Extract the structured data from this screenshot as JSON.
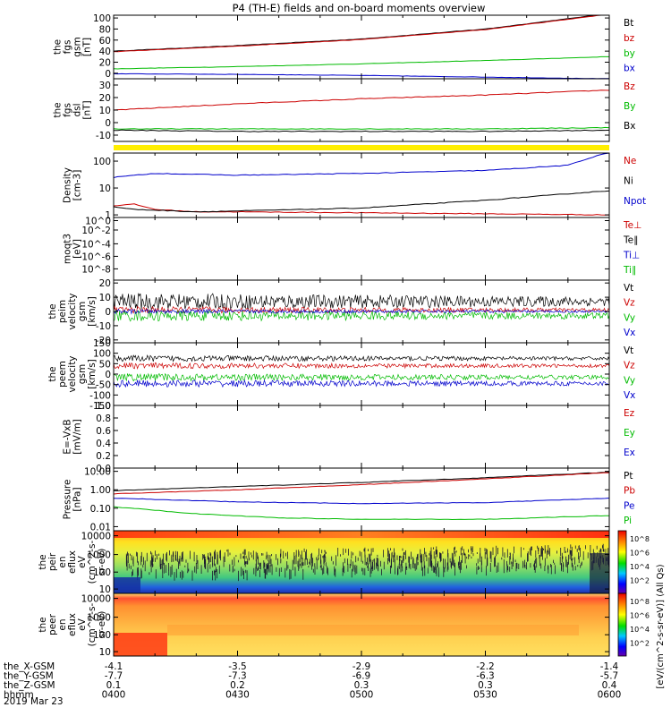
{
  "title": "P4 (TH-E) fields and on-board moments overview",
  "date": "2019 Mar 23",
  "colorbar_unit": "[eV/(cm^2-s-sr-eV)] (All Qs)",
  "ephemeris": {
    "labels": [
      "the_X-GSM",
      "the_Y-GSM",
      "the_Z-GSM",
      "hhmm"
    ],
    "columns": [
      [
        "-4.1",
        "-7.7",
        "0.1",
        "0400"
      ],
      [
        "-3.5",
        "-7.3",
        "0.2",
        "0430"
      ],
      [
        "-2.9",
        "-6.9",
        "0.3",
        "0500"
      ],
      [
        "-2.2",
        "-6.3",
        "0.3",
        "0530"
      ],
      [
        "-1.4",
        "-5.7",
        "0.4",
        "0600"
      ]
    ]
  },
  "chart_data": [
    {
      "type": "line",
      "id": "fgs_gsm",
      "ylabel": [
        "the",
        "fgs",
        "gsm",
        "[nT]"
      ],
      "yticks": [
        "100",
        "80",
        "60",
        "40",
        "20",
        "0"
      ],
      "ylim": [
        -10,
        105
      ],
      "series": [
        {
          "name": "Bt",
          "color": "#000000",
          "x": [
            0,
            30,
            60,
            90,
            120
          ],
          "values": [
            40,
            50,
            62,
            80,
            108
          ]
        },
        {
          "name": "bz",
          "color": "#cc0000",
          "x": [
            0,
            30,
            60,
            90,
            120
          ],
          "values": [
            39,
            49,
            61,
            79,
            107
          ]
        },
        {
          "name": "by",
          "color": "#00bb00",
          "x": [
            0,
            30,
            60,
            90,
            120
          ],
          "values": [
            8,
            12,
            17,
            23,
            30
          ]
        },
        {
          "name": "bx",
          "color": "#0000cc",
          "x": [
            0,
            30,
            60,
            90,
            120
          ],
          "values": [
            -1,
            -2,
            -4,
            -7,
            -10
          ]
        }
      ]
    },
    {
      "type": "line",
      "id": "fgs_dsl",
      "ylabel": [
        "the",
        "fgs",
        "dsl",
        "[nT]"
      ],
      "yticks": [
        "30",
        "20",
        "10",
        "0",
        "-10"
      ],
      "ylim": [
        -15,
        35
      ],
      "series": [
        {
          "name": "Bz",
          "color": "#cc0000",
          "x": [
            0,
            30,
            60,
            90,
            120
          ],
          "values": [
            10,
            15,
            19,
            22,
            26
          ]
        },
        {
          "name": "By",
          "color": "#00bb00",
          "x": [
            0,
            30,
            60,
            90,
            120
          ],
          "values": [
            -5,
            -5,
            -5,
            -5,
            -4
          ]
        },
        {
          "name": "Bx",
          "color": "#000000",
          "x": [
            0,
            30,
            60,
            90,
            120
          ],
          "values": [
            -6,
            -7,
            -7,
            -7,
            -6
          ]
        }
      ]
    },
    {
      "type": "line",
      "id": "density",
      "ylabel": [
        "Density",
        "[cm-3]"
      ],
      "yticks": [
        "100",
        "10",
        "1"
      ],
      "scale": "log",
      "ylim": [
        0.8,
        200
      ],
      "series": [
        {
          "name": "Ne",
          "color": "#cc0000",
          "x": [
            0,
            5,
            10,
            20,
            30,
            60,
            90,
            120
          ],
          "values": [
            2.2,
            2.5,
            1.6,
            1.3,
            1.3,
            1.2,
            1.1,
            1.0
          ]
        },
        {
          "name": "Ni",
          "color": "#000000",
          "x": [
            0,
            5,
            10,
            20,
            30,
            60,
            90,
            120
          ],
          "values": [
            2.0,
            1.6,
            1.5,
            1.3,
            1.4,
            1.8,
            3.5,
            8
          ]
        },
        {
          "name": "Npot",
          "color": "#0000cc",
          "x": [
            0,
            10,
            30,
            60,
            90,
            110,
            118,
            120
          ],
          "values": [
            25,
            35,
            30,
            35,
            45,
            70,
            180,
            200
          ]
        }
      ]
    },
    {
      "type": "line",
      "id": "temperature",
      "ylabel": [
        "moqt3",
        "[eV]"
      ],
      "yticks": [
        "10^0",
        "10^-2",
        "10^-4",
        "10^-6",
        "10^-8"
      ],
      "series": [
        {
          "name": "Te⊥",
          "color": "#cc0000"
        },
        {
          "name": "Te∥",
          "color": "#000000"
        },
        {
          "name": "Ti⊥",
          "color": "#0000cc"
        },
        {
          "name": "Ti∥",
          "color": "#00bb00"
        }
      ]
    },
    {
      "type": "line",
      "id": "peim_velocity",
      "ylabel": [
        "the",
        "peim",
        "velocity",
        "gsm",
        "[km/s]"
      ],
      "yticks": [
        "20",
        "10",
        "0",
        "-10",
        "-20"
      ],
      "ylim": [
        -22,
        22
      ],
      "series": [
        {
          "name": "Vt",
          "color": "#000000",
          "mean": 7,
          "amp": 6
        },
        {
          "name": "Vz",
          "color": "#cc0000",
          "mean": 1,
          "amp": 2.5
        },
        {
          "name": "Vy",
          "color": "#00bb00",
          "mean": -3,
          "amp": 4
        },
        {
          "name": "Vx",
          "color": "#0000cc",
          "mean": 0,
          "amp": 1.5
        }
      ]
    },
    {
      "type": "line",
      "id": "peem_velocity",
      "ylabel": [
        "the",
        "peem",
        "velocity",
        "gsm",
        "[km/s]"
      ],
      "yticks": [
        "150",
        "100",
        "50",
        "0",
        "-50",
        "-100",
        "-150"
      ],
      "ylim": [
        -150,
        150
      ],
      "series": [
        {
          "name": "Vt",
          "color": "#000000",
          "mean": 75,
          "amp": 15
        },
        {
          "name": "Vz",
          "color": "#cc0000",
          "mean": 40,
          "amp": 14
        },
        {
          "name": "Vy",
          "color": "#00bb00",
          "mean": -15,
          "amp": 18
        },
        {
          "name": "Vx",
          "color": "#0000cc",
          "mean": -45,
          "amp": 18
        }
      ]
    },
    {
      "type": "line",
      "id": "efield",
      "ylabel": [
        "E=-VxB",
        "[mV/m]"
      ],
      "yticks": [
        "1.0",
        "0.8",
        "0.6",
        "0.4",
        "0.2",
        "0.0"
      ],
      "ylim": [
        0,
        1
      ],
      "series": [
        {
          "name": "Ez",
          "color": "#cc0000"
        },
        {
          "name": "Ey",
          "color": "#00bb00"
        },
        {
          "name": "Ex",
          "color": "#0000cc"
        }
      ]
    },
    {
      "type": "line",
      "id": "pressure",
      "ylabel": [
        "Pressure",
        "[nPa]"
      ],
      "yticks": [
        "10.00",
        "1.00",
        "0.10",
        "0.01"
      ],
      "scale": "log",
      "ylim": [
        0.006,
        15
      ],
      "series": [
        {
          "name": "Pt",
          "color": "#000000",
          "x": [
            0,
            30,
            60,
            90,
            120
          ],
          "values": [
            0.9,
            1.5,
            2.5,
            4.5,
            9
          ]
        },
        {
          "name": "Pb",
          "color": "#cc0000",
          "x": [
            0,
            30,
            60,
            90,
            120
          ],
          "values": [
            0.6,
            1.0,
            1.9,
            3.9,
            8.5
          ]
        },
        {
          "name": "Pe",
          "color": "#0000cc",
          "x": [
            0,
            30,
            60,
            90,
            120
          ],
          "values": [
            0.35,
            0.22,
            0.18,
            0.2,
            0.35
          ]
        },
        {
          "name": "Pi",
          "color": "#00bb00",
          "x": [
            0,
            20,
            40,
            60,
            90,
            120
          ],
          "values": [
            0.12,
            0.05,
            0.03,
            0.025,
            0.025,
            0.04
          ]
        }
      ]
    },
    {
      "type": "heatmap",
      "id": "peir_eflux",
      "ylabel": [
        "the",
        "peir",
        "en",
        "eflux",
        "eV",
        "(cm^2-s-",
        "sr-eV)"
      ],
      "yticks": [
        "10000",
        "1000",
        "100",
        "10"
      ]
    },
    {
      "type": "heatmap",
      "id": "peer_eflux",
      "ylabel": [
        "the",
        "peer",
        "en",
        "eflux",
        "eV",
        "(cm^2-s-",
        "sr-eV)"
      ],
      "yticks": [
        "10000",
        "1000",
        "100",
        "10"
      ]
    }
  ]
}
